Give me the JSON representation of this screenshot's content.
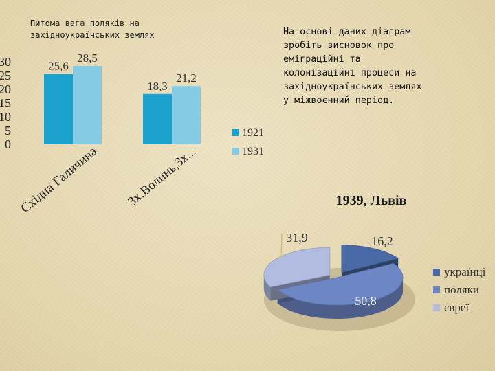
{
  "slide": {
    "bar_title": "Питома вага поляків на\nзахідноукраїнських землях",
    "instruction": "На основі даних діаграм\nзробіть висновок про\nеміграційні та\nколонізаційні процеси на\nзахідноукраїнських землях\nу міжвоєнний період."
  },
  "colors": {
    "bar_1921": "#1ba1cc",
    "bar_1931": "#86cbe6",
    "pie_ukr": "#4a6aa6",
    "pie_pol": "#6d86c4",
    "pie_jew": "#b1bce0"
  },
  "chart_data": [
    {
      "type": "bar",
      "title": "",
      "categories": [
        "Східна Галичина",
        "Зх.Волинь,Зх..."
      ],
      "series": [
        {
          "name": "1921",
          "values": [
            25.6,
            18.3
          ],
          "labels": [
            "25,6",
            "18,3"
          ]
        },
        {
          "name": "1931",
          "values": [
            28.5,
            21.2
          ],
          "labels": [
            "28,5",
            "21,2"
          ]
        }
      ],
      "yticks": [
        0,
        5,
        10,
        15,
        20,
        25,
        30
      ],
      "ylim": [
        0,
        30
      ],
      "grid": false,
      "legend": "right"
    },
    {
      "type": "pie",
      "title": "1939, Львів",
      "slices": [
        {
          "name": "українці",
          "value": 16.2,
          "label": "16,2"
        },
        {
          "name": "поляки",
          "value": 50.8,
          "label": "50,8"
        },
        {
          "name": "євреї",
          "value": 31.9,
          "label": "31,9"
        }
      ],
      "legend": "right"
    }
  ]
}
